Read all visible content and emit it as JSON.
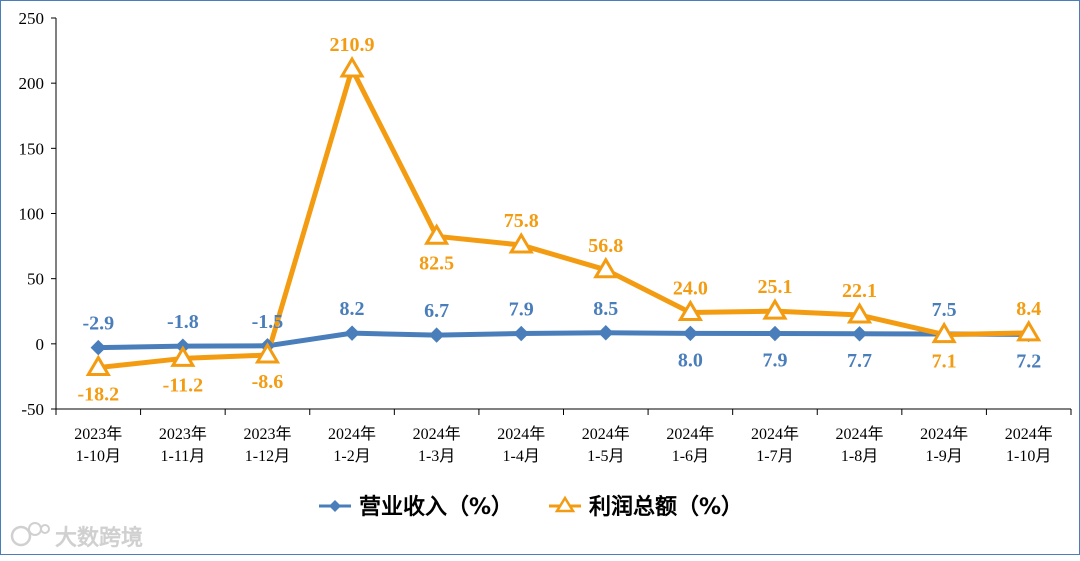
{
  "chart_data": {
    "type": "line",
    "categories": [
      [
        "2023年",
        "1-10月"
      ],
      [
        "2023年",
        "1-11月"
      ],
      [
        "2023年",
        "1-12月"
      ],
      [
        "2024年",
        "1-2月"
      ],
      [
        "2024年",
        "1-3月"
      ],
      [
        "2024年",
        "1-4月"
      ],
      [
        "2024年",
        "1-5月"
      ],
      [
        "2024年",
        "1-6月"
      ],
      [
        "2024年",
        "1-7月"
      ],
      [
        "2024年",
        "1-8月"
      ],
      [
        "2024年",
        "1-9月"
      ],
      [
        "2024年",
        "1-10月"
      ]
    ],
    "ylim": [
      -50,
      250
    ],
    "yticks": [
      "-50",
      "0",
      "50",
      "100",
      "150",
      "200",
      "250"
    ],
    "grid": false,
    "legend_position": "bottom",
    "series": [
      {
        "name": "营业收入（%）",
        "color": "#4a7ebb",
        "marker": "diamond",
        "values": [
          -2.9,
          -1.8,
          -1.5,
          8.2,
          6.7,
          7.9,
          8.5,
          8.0,
          7.9,
          7.7,
          7.5,
          7.2
        ],
        "labels": [
          "-2.9",
          "-1.8",
          "-1.5",
          "8.2",
          "6.7",
          "7.9",
          "8.5",
          "8.0",
          "7.9",
          "7.7",
          "7.5",
          "7.2"
        ],
        "label_positions": [
          "above",
          "above",
          "above",
          "above",
          "above",
          "above",
          "above",
          "below",
          "below",
          "below",
          "above",
          "below"
        ]
      },
      {
        "name": "利润总额（%）",
        "color": "#f39c12",
        "marker": "triangle",
        "values": [
          -18.2,
          -11.2,
          -8.6,
          210.9,
          82.5,
          75.8,
          56.8,
          24.0,
          25.1,
          22.1,
          7.1,
          8.4
        ],
        "labels": [
          "-18.2",
          "-11.2",
          "-8.6",
          "210.9",
          "82.5",
          "75.8",
          "56.8",
          "24.0",
          "25.1",
          "22.1",
          "7.1",
          "8.4"
        ],
        "label_positions": [
          "below",
          "below",
          "below",
          "above",
          "below",
          "above",
          "above",
          "above",
          "above",
          "above",
          "below",
          "above"
        ]
      }
    ]
  },
  "watermark": {
    "text": "大数跨境"
  }
}
